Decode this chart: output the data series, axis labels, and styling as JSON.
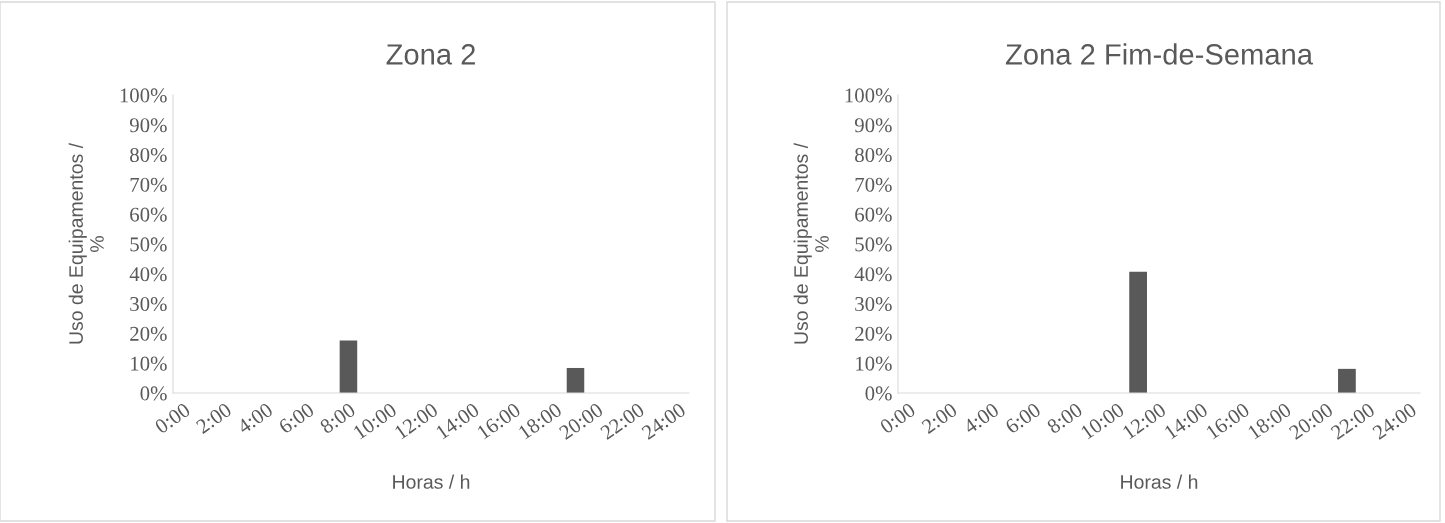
{
  "chart_data": [
    {
      "type": "bar",
      "title": "Zona 2",
      "xlabel": "Horas / h",
      "ylabel": "Uso de Equipamentos /\n%",
      "categories": [
        "0:00",
        null,
        "2:00",
        null,
        "4:00",
        null,
        "6:00",
        null,
        "8:00",
        null,
        "10:00",
        null,
        "12:00",
        null,
        "14:00",
        null,
        "16:00",
        null,
        "18:00",
        null,
        "20:00",
        null,
        "22:00",
        null,
        "24:00"
      ],
      "values": [
        0,
        0,
        0,
        0,
        0,
        0,
        0,
        null,
        17.6,
        0,
        0,
        0,
        0,
        0,
        0,
        0,
        0,
        null,
        null,
        8.4,
        0,
        0,
        null,
        0,
        0
      ],
      "color": "#595959",
      "ylim": [
        0,
        100
      ],
      "yticks": [
        {
          "value": 0,
          "label": "0%"
        },
        {
          "value": 10,
          "label": "10%"
        },
        {
          "value": 20,
          "label": "20%"
        },
        {
          "value": 30,
          "label": "30%"
        },
        {
          "value": 40,
          "label": "40%"
        },
        {
          "value": 50,
          "label": "50%"
        },
        {
          "value": 60,
          "label": "60%"
        },
        {
          "value": 70,
          "label": "70%"
        },
        {
          "value": 80,
          "label": "80%"
        },
        {
          "value": 90,
          "label": "90%"
        },
        {
          "value": 100,
          "label": "100%"
        }
      ],
      "grid": false,
      "legend": false
    },
    {
      "type": "bar",
      "title": "Zona 2 Fim-de-Semana",
      "xlabel": "Horas / h",
      "ylabel": "Uso de Equipamentos /\n%",
      "categories": [
        "0:00",
        null,
        "2:00",
        null,
        "4:00",
        null,
        "6:00",
        null,
        "8:00",
        null,
        "10:00",
        null,
        "12:00",
        null,
        "14:00",
        null,
        "16:00",
        null,
        "18:00",
        null,
        "20:00",
        null,
        "22:00",
        null,
        "24:00"
      ],
      "values": [
        0,
        0,
        0,
        0,
        0,
        0,
        0,
        0,
        0,
        0,
        0,
        40.7,
        0,
        0,
        0,
        0,
        0,
        0,
        0,
        0,
        0,
        8.1,
        null,
        0,
        0
      ],
      "color": "#595959",
      "ylim": [
        0,
        100
      ],
      "yticks": [
        {
          "value": 0,
          "label": "0%"
        },
        {
          "value": 10,
          "label": "10%"
        },
        {
          "value": 20,
          "label": "20%"
        },
        {
          "value": 30,
          "label": "30%"
        },
        {
          "value": 40,
          "label": "40%"
        },
        {
          "value": 50,
          "label": "50%"
        },
        {
          "value": 60,
          "label": "60%"
        },
        {
          "value": 70,
          "label": "70%"
        },
        {
          "value": 80,
          "label": "80%"
        },
        {
          "value": 90,
          "label": "90%"
        },
        {
          "value": 100,
          "label": "100%"
        }
      ],
      "grid": false,
      "legend": false
    }
  ]
}
